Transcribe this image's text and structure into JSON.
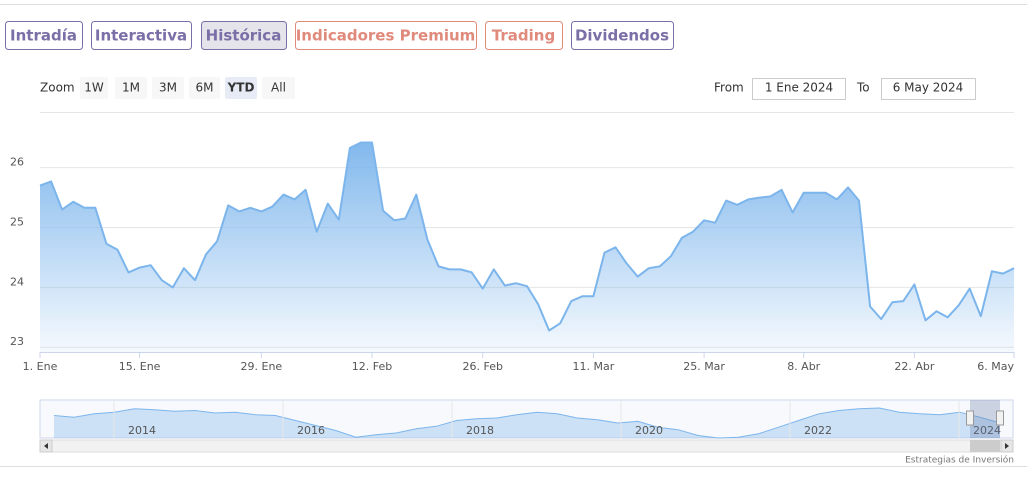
{
  "tabs": {
    "items": [
      "Intradía",
      "Interactiva",
      "Histórica",
      "Indicadores Premium",
      "Trading",
      "Dividendos"
    ],
    "colors": [
      "#7a6fa6",
      "#7a6fa6",
      "#7a6fa6",
      "#e08a7c",
      "#e08a7c",
      "#7a6fa6"
    ],
    "selected": 2
  },
  "zoom": {
    "label": "Zoom",
    "buttons": [
      "1W",
      "1M",
      "3M",
      "6M",
      "YTD",
      "All"
    ],
    "selected": 4
  },
  "range": {
    "from_label": "From",
    "from": "1 Ene 2024",
    "to_label": "To",
    "to": "6 May 2024"
  },
  "credit": "Estrategias de Inversión",
  "chart_data": {
    "type": "area",
    "color": "#7cb5ec",
    "grid": true,
    "categories": [
      "1. Ene",
      null,
      null,
      null,
      null,
      null,
      null,
      null,
      null,
      "15. Ene",
      null,
      null,
      null,
      null,
      null,
      null,
      null,
      null,
      null,
      null,
      "29. Ene",
      null,
      null,
      null,
      null,
      null,
      null,
      null,
      null,
      null,
      "12. Feb",
      null,
      null,
      null,
      null,
      null,
      null,
      null,
      null,
      null,
      "26. Feb",
      null,
      null,
      null,
      null,
      null,
      null,
      null,
      null,
      null,
      "11. Mar",
      null,
      null,
      null,
      null,
      null,
      null,
      null,
      null,
      null,
      "25. Mar",
      null,
      null,
      null,
      null,
      null,
      null,
      null,
      null,
      "8. Abr",
      null,
      null,
      null,
      null,
      null,
      null,
      null,
      null,
      null,
      "22. Abr",
      null,
      null,
      null,
      null,
      null,
      null,
      null,
      null,
      "6. May"
    ],
    "values": [
      25.7,
      25.77,
      25.3,
      25.43,
      25.33,
      25.33,
      24.73,
      24.63,
      24.25,
      24.33,
      24.37,
      24.12,
      24.0,
      24.32,
      24.12,
      24.55,
      24.77,
      25.37,
      25.27,
      25.33,
      25.27,
      25.35,
      25.55,
      25.47,
      25.63,
      24.93,
      25.4,
      25.13,
      26.33,
      26.42,
      26.42,
      25.28,
      25.12,
      25.15,
      25.55,
      24.8,
      24.35,
      24.3,
      24.3,
      24.25,
      23.98,
      24.3,
      24.03,
      24.07,
      24.02,
      23.72,
      23.28,
      23.4,
      23.77,
      23.85,
      23.85,
      24.58,
      24.67,
      24.4,
      24.18,
      24.32,
      24.35,
      24.52,
      24.83,
      24.93,
      25.12,
      25.08,
      25.45,
      25.38,
      25.47,
      25.5,
      25.52,
      25.63,
      25.25,
      25.58,
      25.58,
      25.58,
      25.47,
      25.67,
      25.45,
      23.68,
      23.47,
      23.75,
      23.77,
      24.05,
      23.45,
      23.6,
      23.5,
      23.7,
      23.98,
      23.52,
      24.27,
      24.23,
      24.32
    ],
    "ylim": [
      22.92,
      26.93
    ],
    "yticks": [
      23,
      24,
      25,
      26
    ],
    "navigator": {
      "labels": [
        "2014",
        "2016",
        "2018",
        "2020",
        "2022",
        "2024"
      ],
      "values": [
        25.2,
        25.0,
        25.4,
        25.6,
        26.0,
        25.9,
        25.7,
        25.8,
        25.5,
        25.6,
        25.3,
        25.2,
        24.6,
        24.0,
        23.4,
        22.6,
        22.9,
        23.1,
        23.6,
        23.9,
        24.6,
        24.8,
        24.9,
        25.3,
        25.6,
        25.4,
        24.9,
        24.7,
        24.3,
        24.5,
        23.8,
        23.5,
        22.8,
        22.5,
        22.6,
        23.0,
        23.8,
        24.6,
        25.4,
        25.8,
        26.0,
        26.1,
        25.6,
        25.4,
        25.3,
        25.6,
        25.0,
        24.3
      ]
    }
  }
}
